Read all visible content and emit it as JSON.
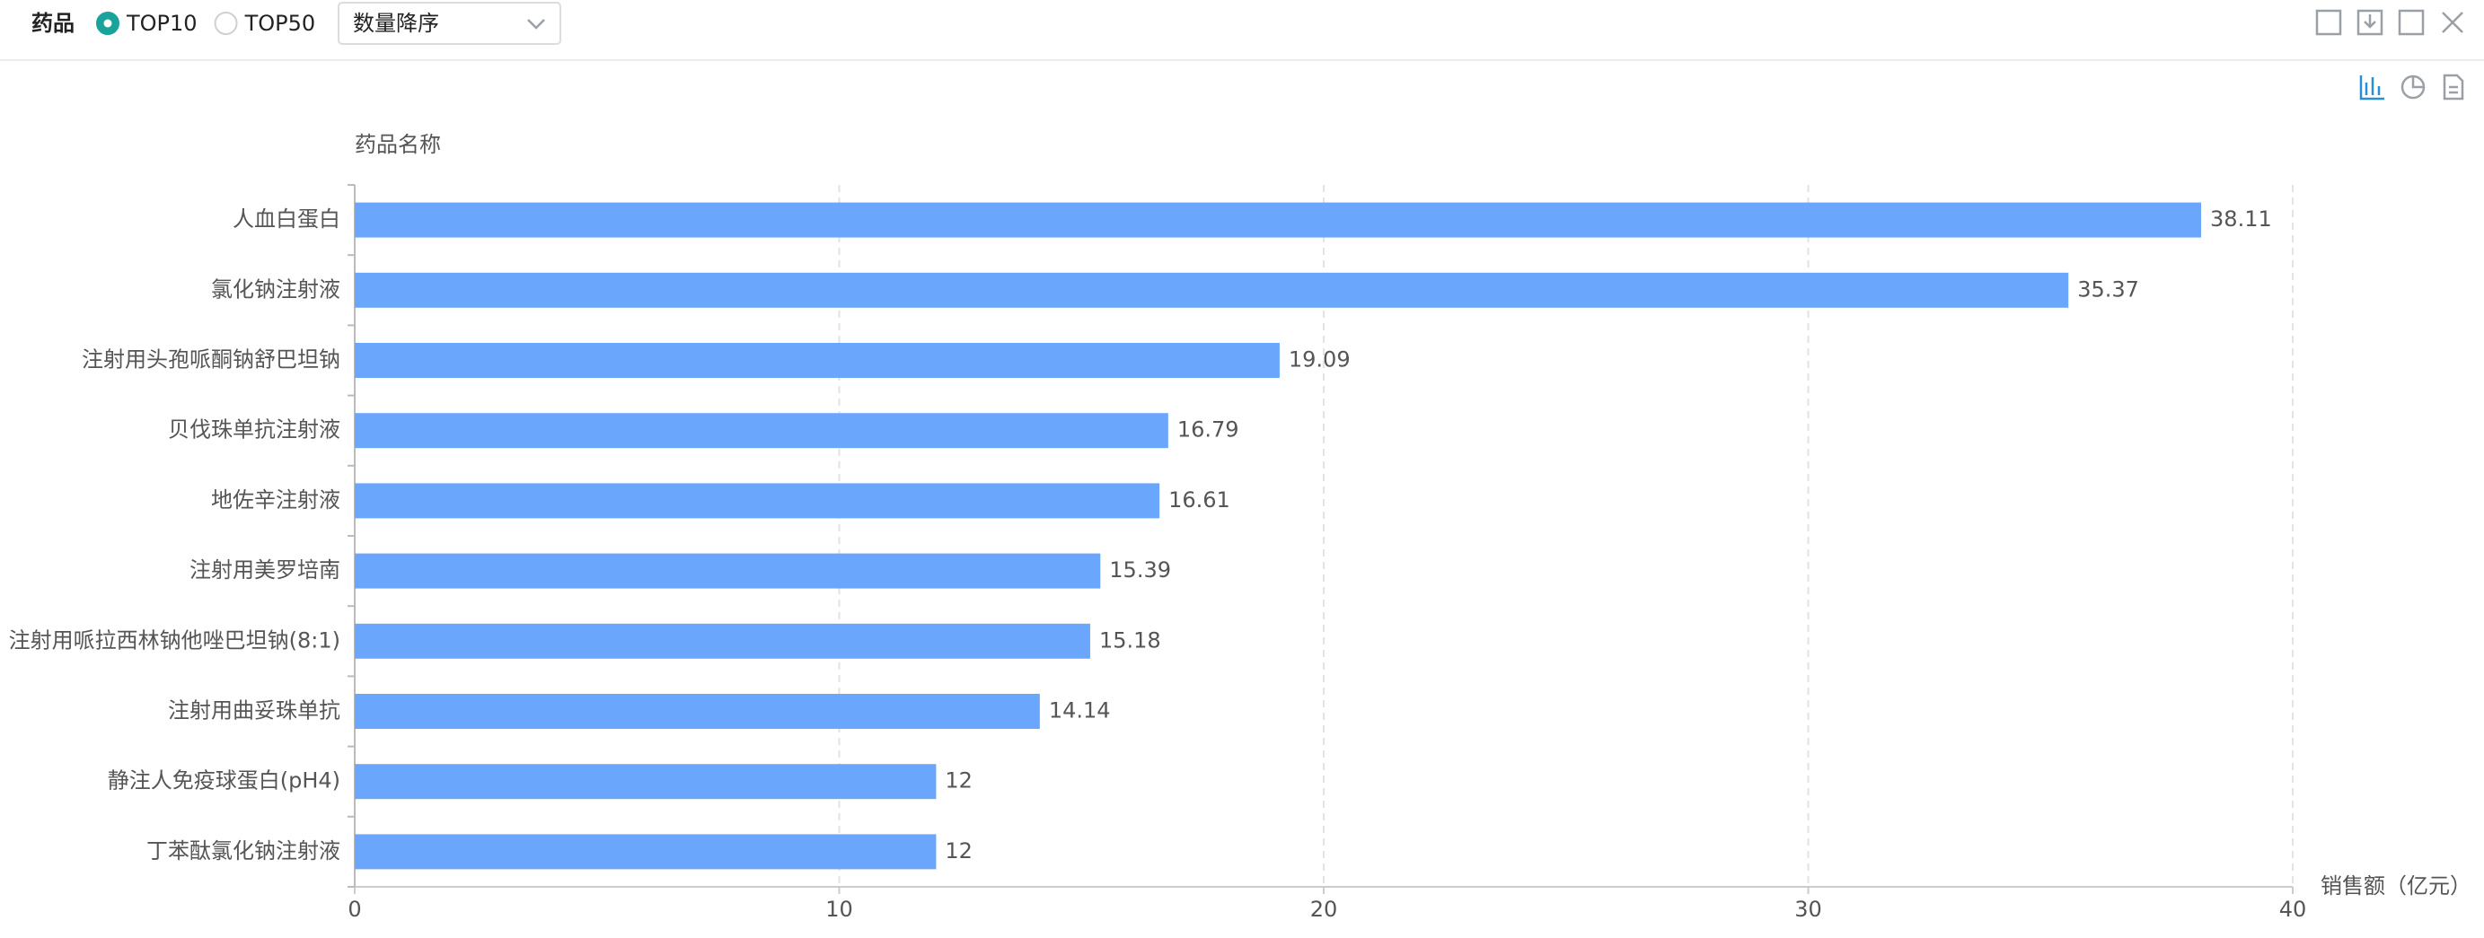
{
  "toolbar": {
    "label": "药品",
    "options": [
      "TOP10",
      "TOP50"
    ],
    "selected": 0,
    "sort": "数量降序"
  },
  "chart_data": {
    "type": "bar",
    "orientation": "horizontal",
    "y_label": "药品名称",
    "x_label": "销售额（亿元）",
    "categories": [
      "人血白蛋白",
      "氯化钠注射液",
      "注射用头孢哌酮钠舒巴坦钠",
      "贝伐珠单抗注射液",
      "地佐辛注射液",
      "注射用美罗培南",
      "注射用哌拉西林钠他唑巴坦钠(8:1)",
      "注射用曲妥珠单抗",
      "静注人免疫球蛋白(pH4)",
      "丁苯酞氯化钠注射液"
    ],
    "values": [
      38.11,
      35.37,
      19.09,
      16.79,
      16.61,
      15.39,
      15.18,
      14.14,
      12,
      12
    ],
    "color": "#6ba6fd",
    "xlim": [
      0,
      40
    ],
    "xticks": [
      0,
      10,
      20,
      30,
      40
    ],
    "grid": true
  }
}
